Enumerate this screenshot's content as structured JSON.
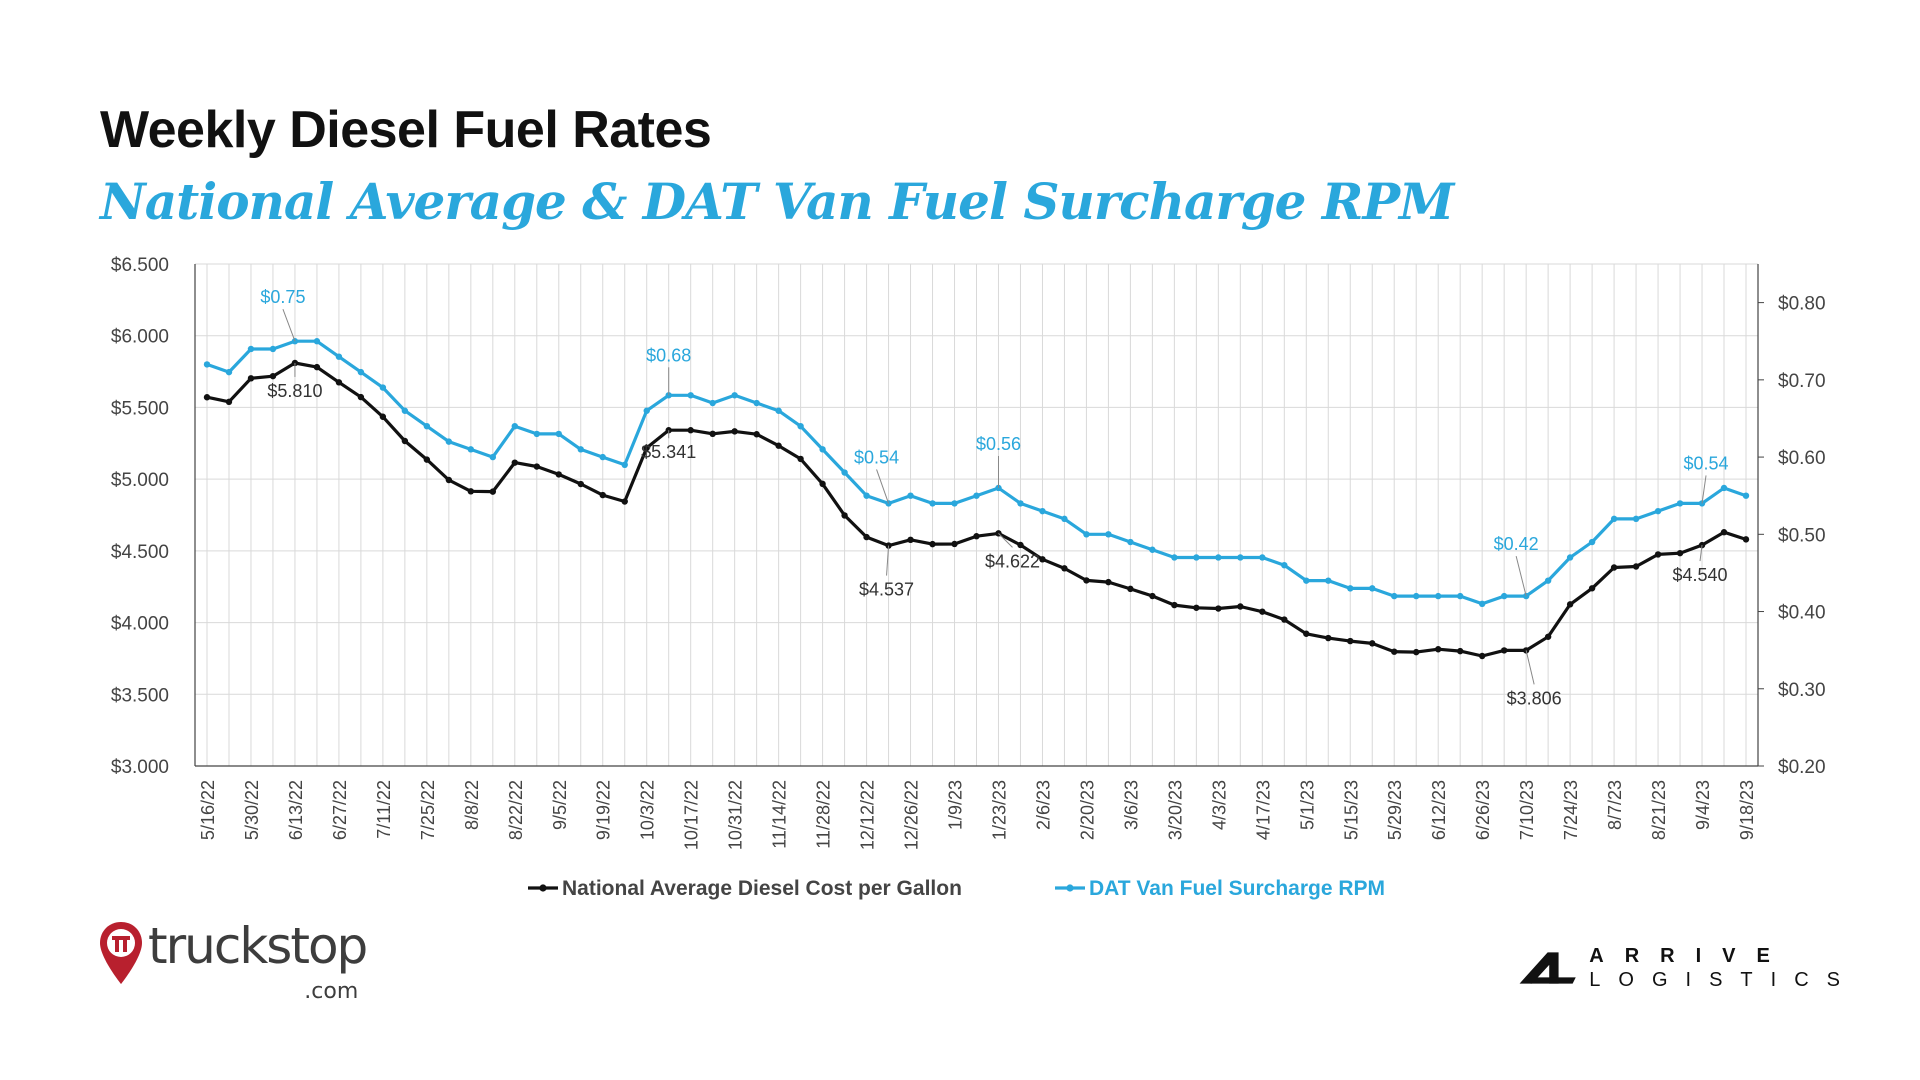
{
  "title": "Weekly Diesel Fuel Rates",
  "subtitle": "National Average & DAT Van Fuel Surcharge RPM",
  "brands": {
    "left": {
      "name": "truckstop",
      "suffix": ".com",
      "icon": "map-pin-icon"
    },
    "right": {
      "word1": "ARRIVE",
      "word2": "LOGISTICS",
      "icon": "arrive-logo-icon"
    }
  },
  "colors": {
    "diesel": "#111111",
    "dat": "#2aa7dc",
    "grid": "#d9d9d9",
    "axis": "#444444"
  },
  "chart_data": {
    "type": "line",
    "grid": true,
    "legend_position": "bottom-center",
    "x": [
      "5/16/22",
      "5/23/22",
      "5/30/22",
      "6/6/22",
      "6/13/22",
      "6/20/22",
      "6/27/22",
      "7/4/22",
      "7/11/22",
      "7/18/22",
      "7/25/22",
      "8/1/22",
      "8/8/22",
      "8/15/22",
      "8/22/22",
      "8/29/22",
      "9/5/22",
      "9/12/22",
      "9/19/22",
      "9/26/22",
      "10/3/22",
      "10/10/22",
      "10/17/22",
      "10/24/22",
      "10/31/22",
      "11/7/22",
      "11/14/22",
      "11/21/22",
      "11/28/22",
      "12/5/22",
      "12/12/22",
      "12/19/22",
      "12/26/22",
      "1/2/23",
      "1/9/23",
      "1/16/23",
      "1/23/23",
      "1/30/23",
      "2/6/23",
      "2/13/23",
      "2/20/23",
      "2/27/23",
      "3/6/23",
      "3/13/23",
      "3/20/23",
      "3/27/23",
      "4/3/23",
      "4/10/23",
      "4/17/23",
      "4/24/23",
      "5/1/23",
      "5/8/23",
      "5/15/23",
      "5/22/23",
      "5/29/23",
      "6/5/23",
      "6/12/23",
      "6/19/23",
      "6/26/23",
      "7/3/23",
      "7/10/23",
      "7/17/23",
      "7/24/23",
      "7/31/23",
      "8/7/23",
      "8/14/23",
      "8/21/23",
      "8/28/23",
      "9/4/23",
      "9/11/23",
      "9/18/23"
    ],
    "x_tick_labels": [
      "5/16/22",
      "5/30/22",
      "6/13/22",
      "6/27/22",
      "7/11/22",
      "7/25/22",
      "8/8/22",
      "8/22/22",
      "9/5/22",
      "9/19/22",
      "10/3/22",
      "10/17/22",
      "10/31/22",
      "11/14/22",
      "11/28/22",
      "12/12/22",
      "12/26/22",
      "1/9/23",
      "1/23/23",
      "2/6/23",
      "2/20/23",
      "3/6/23",
      "3/20/23",
      "4/3/23",
      "4/17/23",
      "5/1/23",
      "5/15/23",
      "5/29/23",
      "6/12/23",
      "6/26/23",
      "7/10/23",
      "7/24/23",
      "8/7/23",
      "8/21/23",
      "9/4/23",
      "9/18/23"
    ],
    "y_left": {
      "min": 3.0,
      "max": 6.5,
      "step": 0.5,
      "format": "$0.000",
      "ticks": [
        "$3.000",
        "$3.500",
        "$4.000",
        "$4.500",
        "$5.000",
        "$5.500",
        "$6.000",
        "$6.500"
      ]
    },
    "y_right": {
      "min": 0.2,
      "max": 0.85,
      "step": 0.1,
      "ticks": [
        "$0.20",
        "$0.30",
        "$0.40",
        "$0.50",
        "$0.60",
        "$0.70",
        "$0.80"
      ]
    },
    "series": [
      {
        "name": "National Average Diesel Cost per Gallon",
        "axis": "left",
        "color": "#111111",
        "values": [
          5.571,
          5.539,
          5.703,
          5.718,
          5.81,
          5.781,
          5.675,
          5.572,
          5.435,
          5.266,
          5.136,
          4.994,
          4.915,
          4.913,
          5.115,
          5.088,
          5.033,
          4.966,
          4.889,
          4.844,
          5.218,
          5.341,
          5.341,
          5.316,
          5.333,
          5.313,
          5.233,
          5.141,
          4.967,
          4.747,
          4.596,
          4.537,
          4.577,
          4.547,
          4.548,
          4.602,
          4.622,
          4.541,
          4.441,
          4.378,
          4.294,
          4.282,
          4.235,
          4.185,
          4.122,
          4.103,
          4.098,
          4.112,
          4.076,
          4.021,
          3.922,
          3.892,
          3.871,
          3.855,
          3.797,
          3.794,
          3.814,
          3.801,
          3.767,
          3.806,
          3.806,
          3.901,
          4.127,
          4.239,
          4.384,
          4.391,
          4.475,
          4.484,
          4.54,
          4.63,
          4.58
        ],
        "labels": [
          {
            "index": 4,
            "text": "$5.810"
          },
          {
            "index": 21,
            "text": "$5.341"
          },
          {
            "index": 31,
            "text": "$4.537"
          },
          {
            "index": 36,
            "text": "$4.622"
          },
          {
            "index": 60,
            "text": "$3.806"
          },
          {
            "index": 68,
            "text": "$4.540"
          }
        ]
      },
      {
        "name": "DAT Van Fuel Surcharge RPM",
        "axis": "right",
        "color": "#2aa7dc",
        "values": [
          0.72,
          0.71,
          0.74,
          0.74,
          0.75,
          0.75,
          0.73,
          0.71,
          0.69,
          0.66,
          0.64,
          0.62,
          0.61,
          0.6,
          0.64,
          0.63,
          0.63,
          0.61,
          0.6,
          0.59,
          0.66,
          0.68,
          0.68,
          0.67,
          0.68,
          0.67,
          0.66,
          0.64,
          0.61,
          0.58,
          0.55,
          0.54,
          0.55,
          0.54,
          0.54,
          0.55,
          0.56,
          0.54,
          0.53,
          0.52,
          0.5,
          0.5,
          0.49,
          0.48,
          0.47,
          0.47,
          0.47,
          0.47,
          0.47,
          0.46,
          0.44,
          0.44,
          0.43,
          0.43,
          0.42,
          0.42,
          0.42,
          0.42,
          0.41,
          0.42,
          0.42,
          0.44,
          0.47,
          0.49,
          0.52,
          0.52,
          0.53,
          0.54,
          0.54,
          0.56,
          0.55
        ],
        "labels": [
          {
            "index": 4,
            "text": "$0.75"
          },
          {
            "index": 21,
            "text": "$0.68"
          },
          {
            "index": 31,
            "text": "$0.54"
          },
          {
            "index": 36,
            "text": "$0.56"
          },
          {
            "index": 60,
            "text": "$0.42"
          },
          {
            "index": 68,
            "text": "$0.54"
          }
        ]
      }
    ]
  }
}
